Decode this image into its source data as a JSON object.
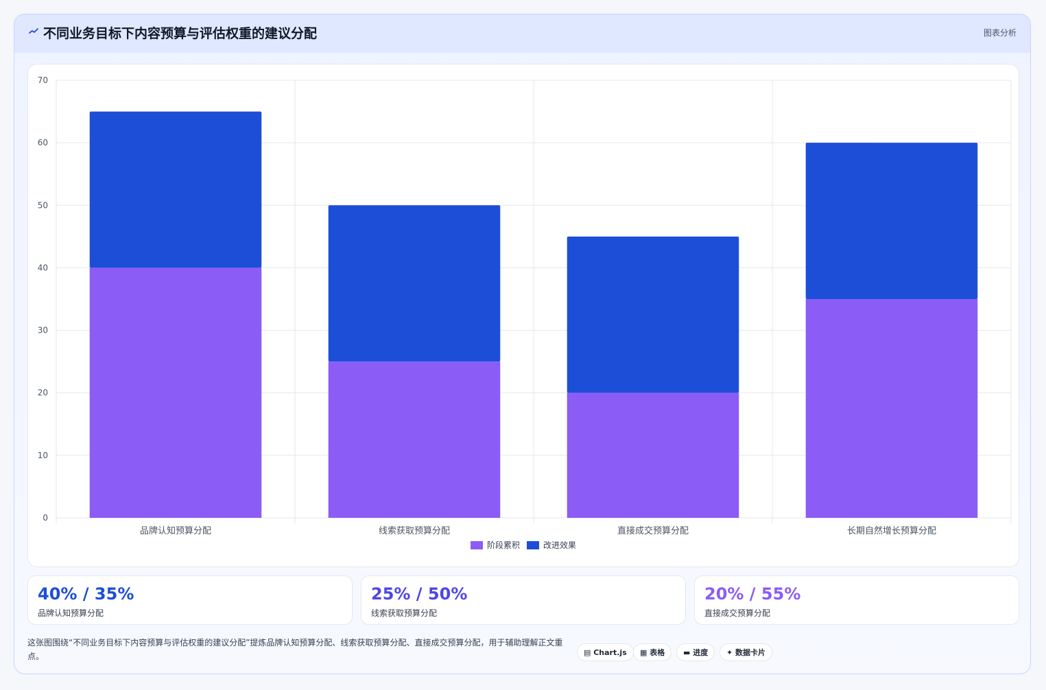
{
  "header": {
    "icon": "trend-line-icon",
    "title": "不同业务目标下内容预算与评估权重的建议分配",
    "tag": "图表分析"
  },
  "colors": {
    "series1": "#8b5cf6",
    "series2": "#1d4ed8",
    "grid": "#e5e7eb",
    "axis_text": "#4b5563",
    "stat1": "#1d4ed8",
    "stat2": "#4f46e5",
    "stat3": "#8b5cf6"
  },
  "chart_data": {
    "type": "bar",
    "stacked": true,
    "categories": [
      "品牌认知预算分配",
      "线索获取预算分配",
      "直接成交预算分配",
      "长期自然增长预算分配"
    ],
    "series": [
      {
        "name": "阶段累积",
        "values": [
          40,
          25,
          20,
          35
        ],
        "color": "#8b5cf6"
      },
      {
        "name": "改进效果",
        "values": [
          25,
          25,
          25,
          25
        ],
        "color": "#1d4ed8"
      }
    ],
    "ylim": [
      0,
      70
    ],
    "yticks": [
      0,
      10,
      20,
      30,
      40,
      50,
      60,
      70
    ],
    "grid": true,
    "legend_position": "bottom"
  },
  "stats": [
    {
      "value": "40% / 35%",
      "label": "品牌认知预算分配"
    },
    {
      "value": "25% / 50%",
      "label": "线索获取预算分配"
    },
    {
      "value": "20% / 55%",
      "label": "直接成交预算分配"
    }
  ],
  "footer": {
    "text": "这张图围绕“不同业务目标下内容预算与评估权重的建议分配”提炼品牌认知预算分配、线索获取预算分配、直接成交预算分配，用于辅助理解正文重点。"
  },
  "chips": [
    {
      "icon": "chart-icon",
      "label": "Chart.js"
    },
    {
      "icon": "table-icon",
      "label": "表格"
    },
    {
      "icon": "progress-icon",
      "label": "进度"
    },
    {
      "icon": "card-icon",
      "label": "数据卡片"
    }
  ]
}
